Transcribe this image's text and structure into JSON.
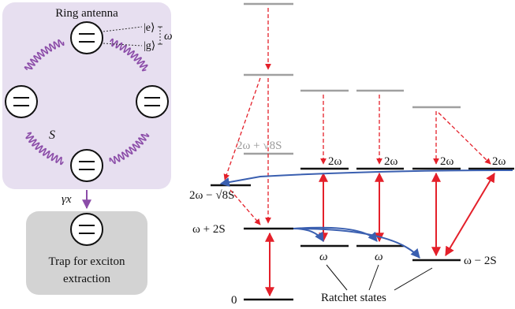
{
  "left_panel": {
    "title": "Ring antenna",
    "state_excited": "|e⟩",
    "state_ground": "|g⟩",
    "transition_freq": "ω",
    "coupling_label": "S",
    "decay_label": "γx",
    "trap_line1": "Trap for exciton",
    "trap_line2": "extraction"
  },
  "colors": {
    "antenna_panel": "#e7dff0",
    "trap_panel": "#d3d3d3",
    "coupling_wave": "#8b4ca8",
    "decay_arrow": "#8b4ca8",
    "excitation_arrow": "#e4202a",
    "transfer_arrow": "#3a5fb0",
    "upper_level": "#a0a0a0"
  },
  "energy_diagram": {
    "level_ground": "0",
    "level_w_plus_2s": "ω + 2S",
    "level_w": "ω",
    "level_w2": "ω",
    "level_w_minus_2s": "ω − 2S",
    "level_2w_minus": "2ω − √8S",
    "level_2w_plus": "2ω + √8S",
    "level_2w_a": "2ω",
    "level_2w_b": "2ω",
    "level_2w_c": "2ω",
    "level_2w_d": "2ω",
    "ratchet_label": "Ratchet states"
  }
}
